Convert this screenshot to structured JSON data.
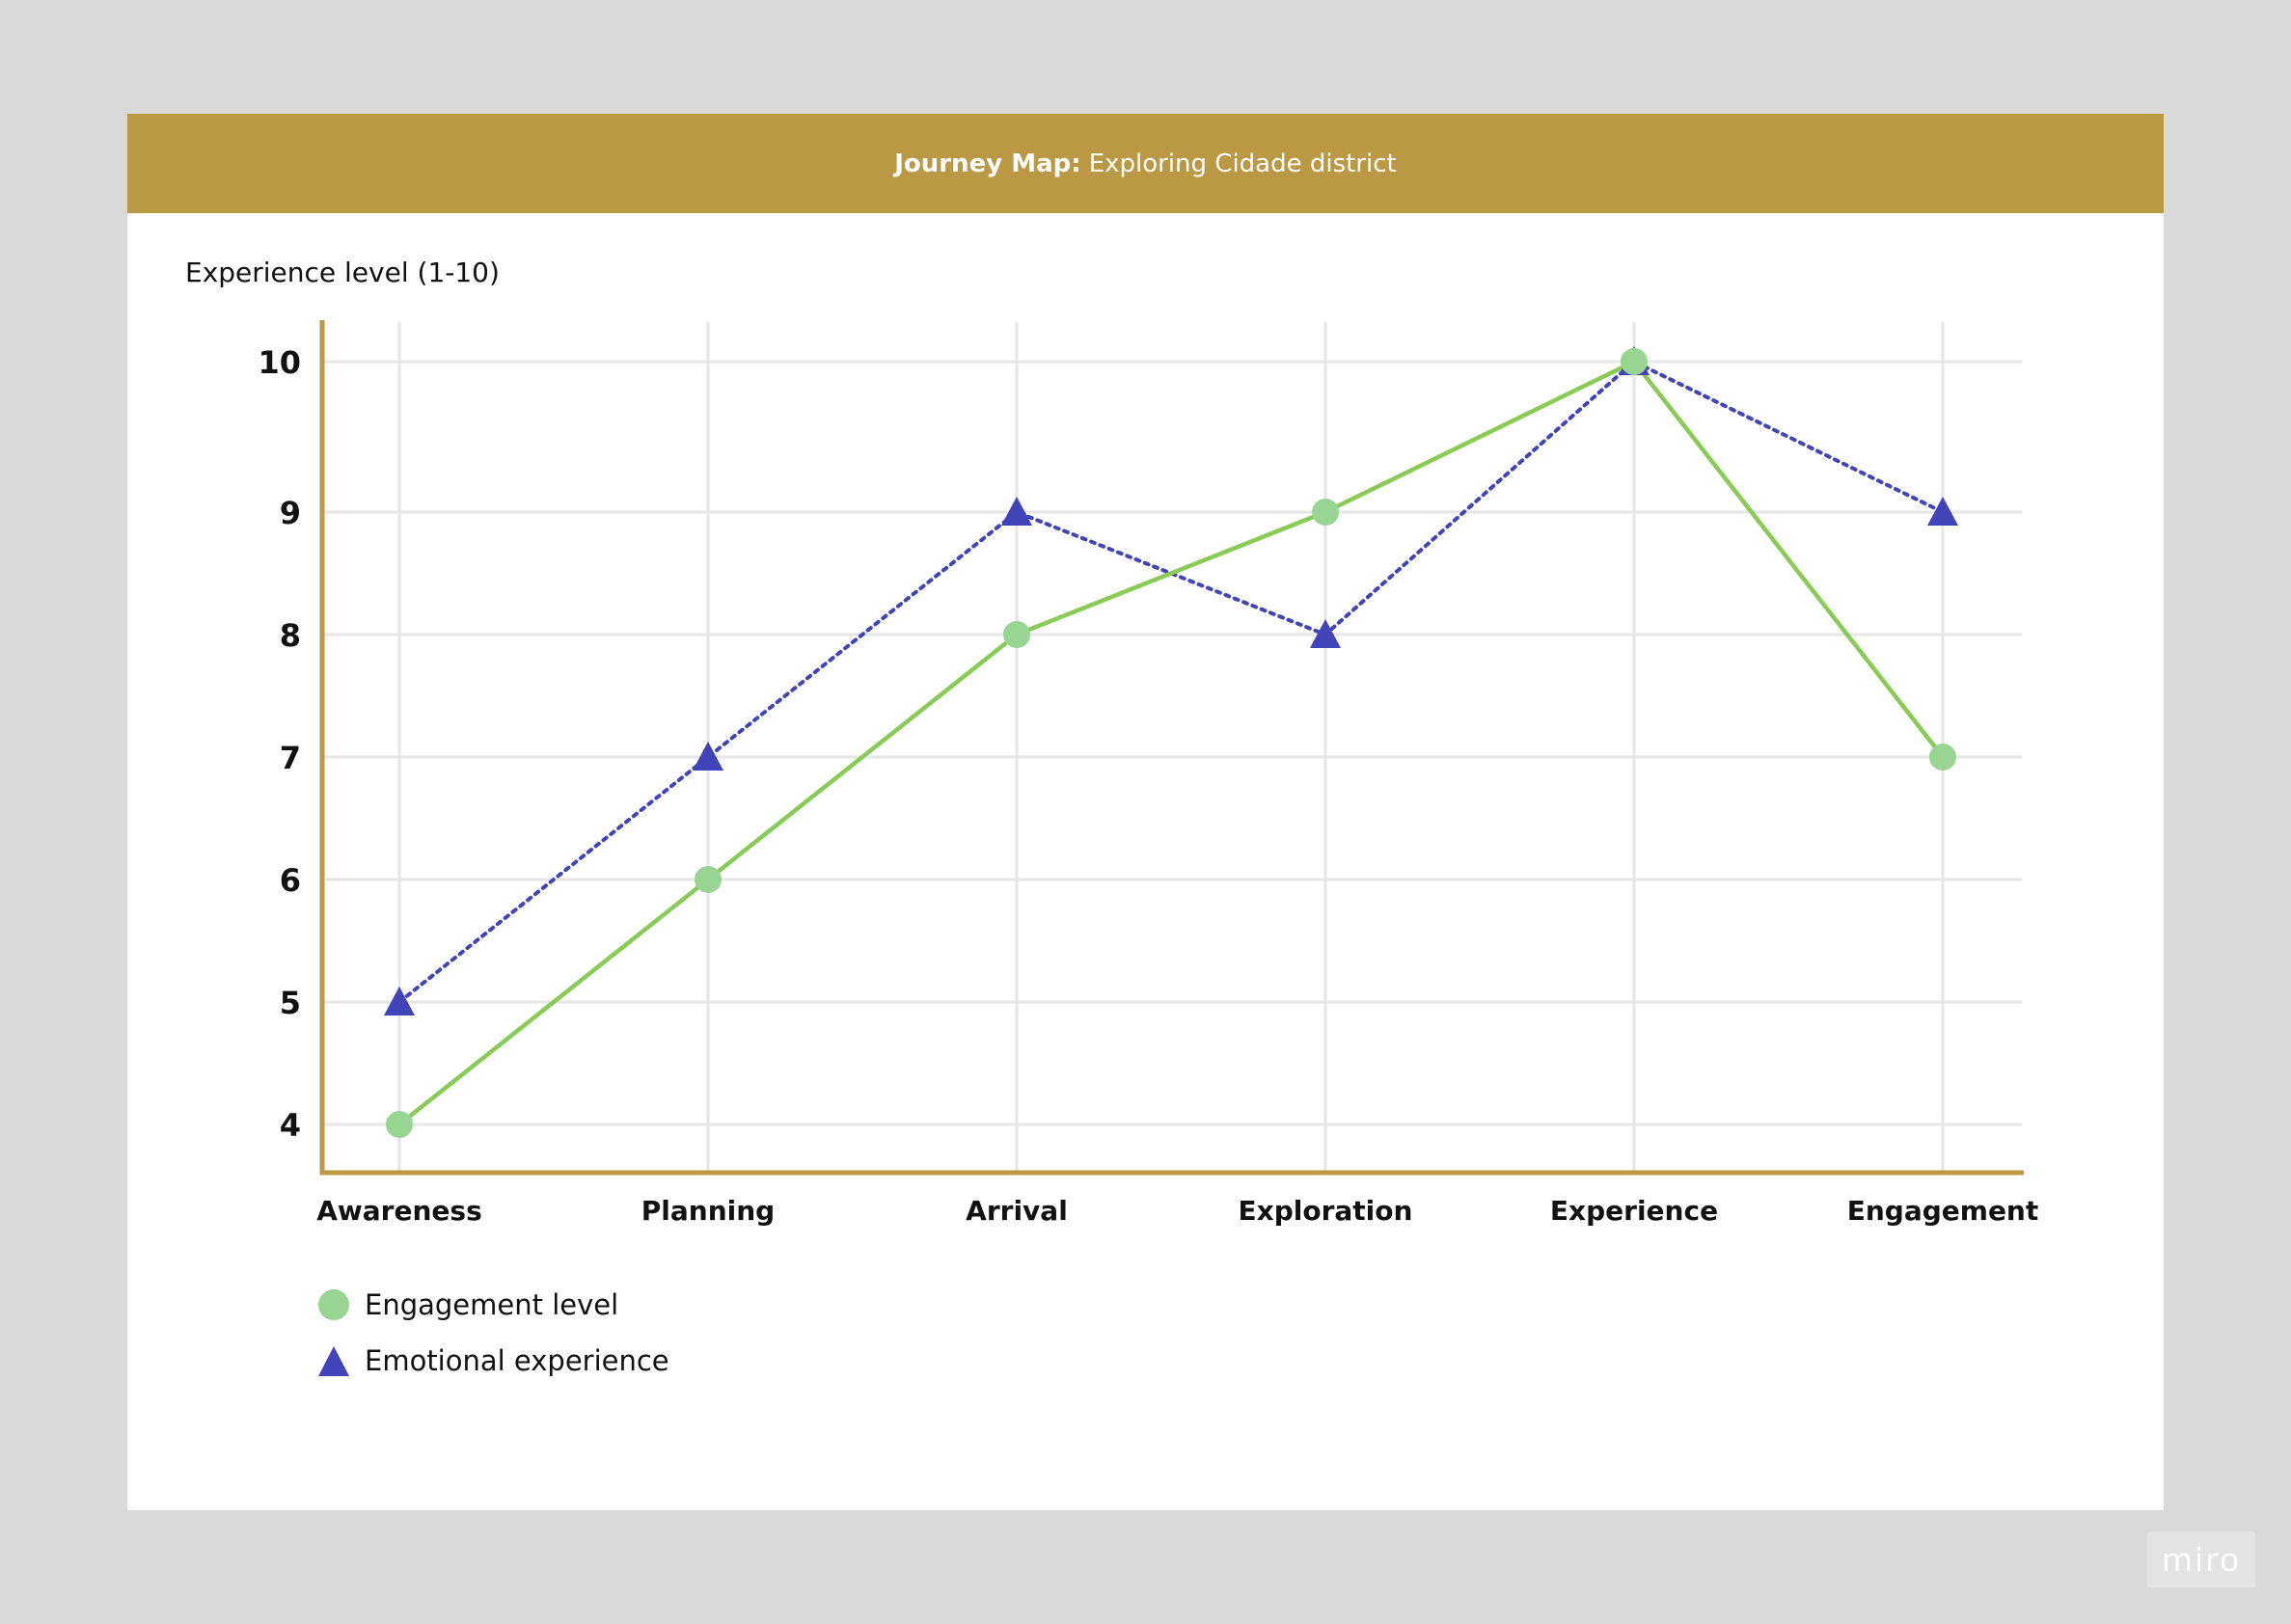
{
  "header": {
    "title_bold": "Journey Map:",
    "title_rest": "Exploring Cidade district"
  },
  "colors": {
    "header": "#bb9944",
    "axis": "#bb9944",
    "grid": "#e6e6e6",
    "engagement_line": "#88cc55",
    "engagement_marker": "#99d592",
    "emotional": "#4044b8"
  },
  "chart_data": {
    "type": "line",
    "categories": [
      "Awareness",
      "Planning",
      "Arrival",
      "Exploration",
      "Experience",
      "Engagement"
    ],
    "series": [
      {
        "name": "Engagement level",
        "values": [
          4,
          6,
          8,
          9,
          10,
          7
        ],
        "marker": "circle",
        "line": "solid"
      },
      {
        "name": "Emotional experience",
        "values": [
          5,
          7,
          9,
          8,
          10,
          9
        ],
        "marker": "triangle",
        "line": "dotted"
      }
    ],
    "ylabel": "Experience level (1-10)",
    "xlabel": "",
    "yticks": [
      4,
      5,
      6,
      7,
      8,
      9,
      10
    ],
    "grid": true,
    "legend_position": "bottom-left"
  },
  "watermark": "miro"
}
